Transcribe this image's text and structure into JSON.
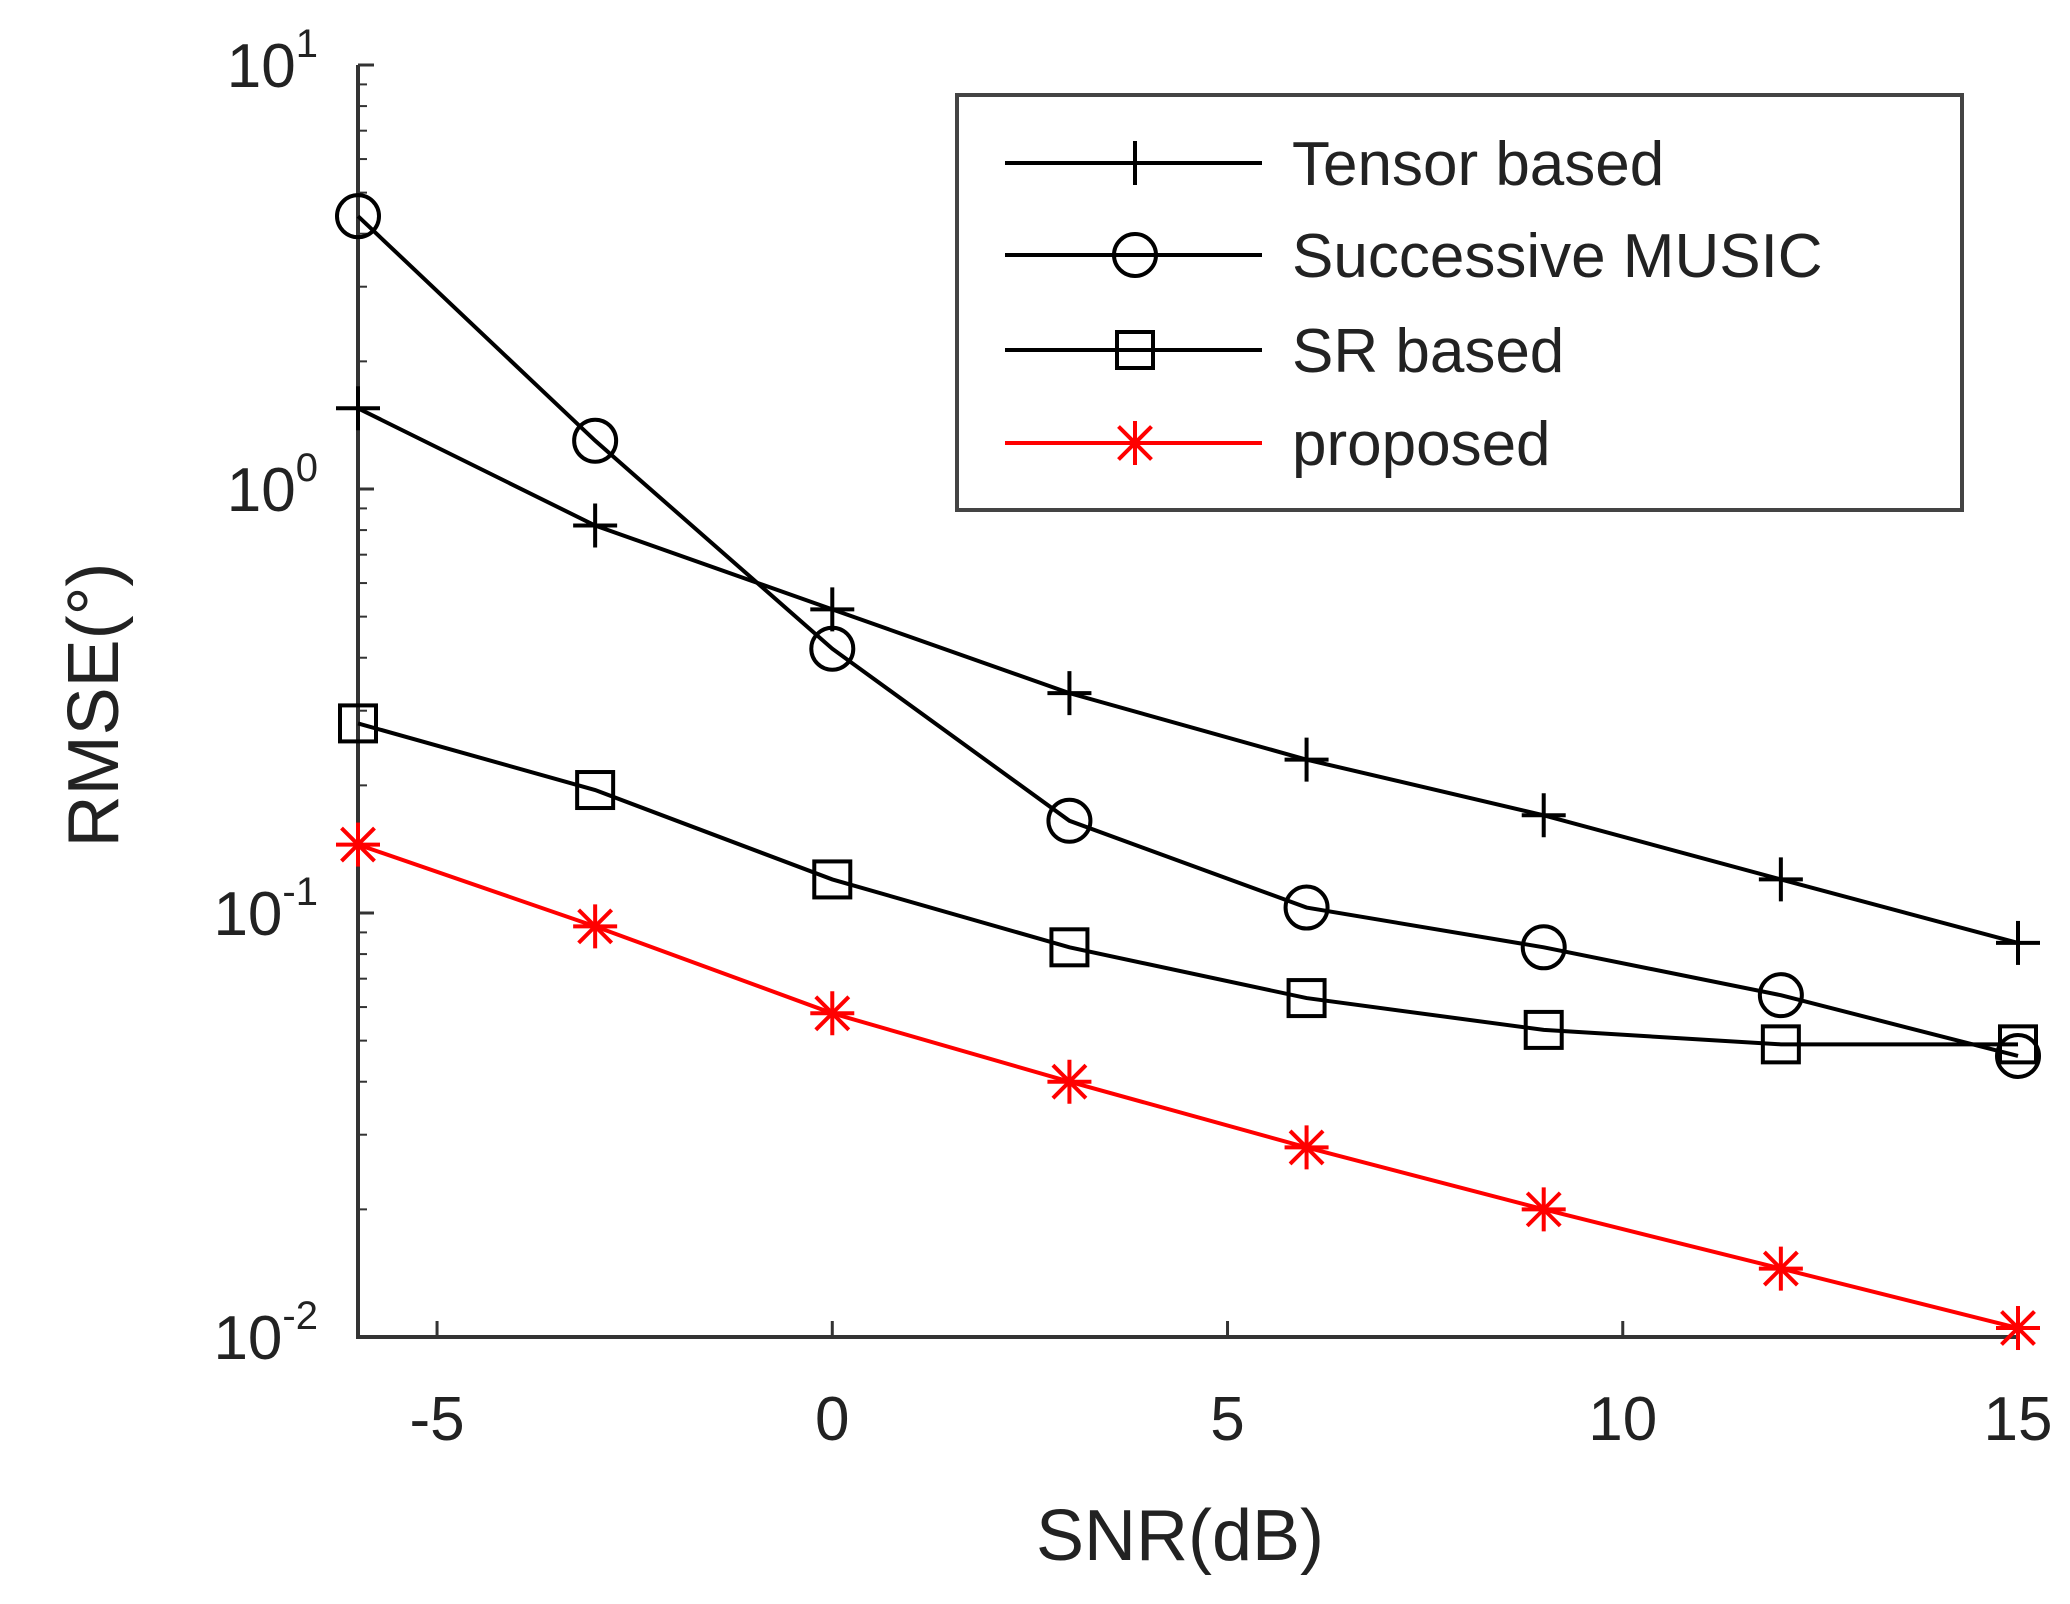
{
  "chart_data": {
    "type": "line",
    "title": "",
    "xlabel": "SNR(dB)",
    "ylabel": "RMSE(°)",
    "yscale": "log",
    "xlim": [
      -6,
      15
    ],
    "ylim": [
      0.01,
      10
    ],
    "x": [
      -6,
      -3,
      0,
      3,
      6,
      9,
      12,
      15
    ],
    "xticks": [
      -5,
      0,
      5,
      10,
      15
    ],
    "xtick_labels": [
      "-5",
      "0",
      "5",
      "10",
      "15"
    ],
    "yticks": [
      {
        "value": 0.01,
        "base": "10",
        "exp": "-2"
      },
      {
        "value": 0.1,
        "base": "10",
        "exp": "-1"
      },
      {
        "value": 1,
        "base": "10",
        "exp": "0"
      },
      {
        "value": 10,
        "base": "10",
        "exp": "1"
      }
    ],
    "legend_position": "top-right",
    "series": [
      {
        "name": "Tensor based",
        "marker": "plus",
        "color": "#000000",
        "values": [
          1.55,
          0.82,
          0.52,
          0.33,
          0.23,
          0.17,
          0.12,
          0.085
        ]
      },
      {
        "name": "Successive MUSIC",
        "marker": "circle",
        "color": "#000000",
        "values": [
          4.4,
          1.3,
          0.42,
          0.165,
          0.103,
          0.083,
          0.064,
          0.046
        ]
      },
      {
        "name": "SR based",
        "marker": "square",
        "color": "#000000",
        "values": [
          0.28,
          0.195,
          0.12,
          0.083,
          0.063,
          0.053,
          0.049,
          0.049
        ]
      },
      {
        "name": "proposed",
        "marker": "asterisk",
        "color": "#ff0000",
        "values": [
          0.145,
          0.093,
          0.058,
          0.04,
          0.028,
          0.02,
          0.0145,
          0.0105
        ]
      }
    ]
  }
}
